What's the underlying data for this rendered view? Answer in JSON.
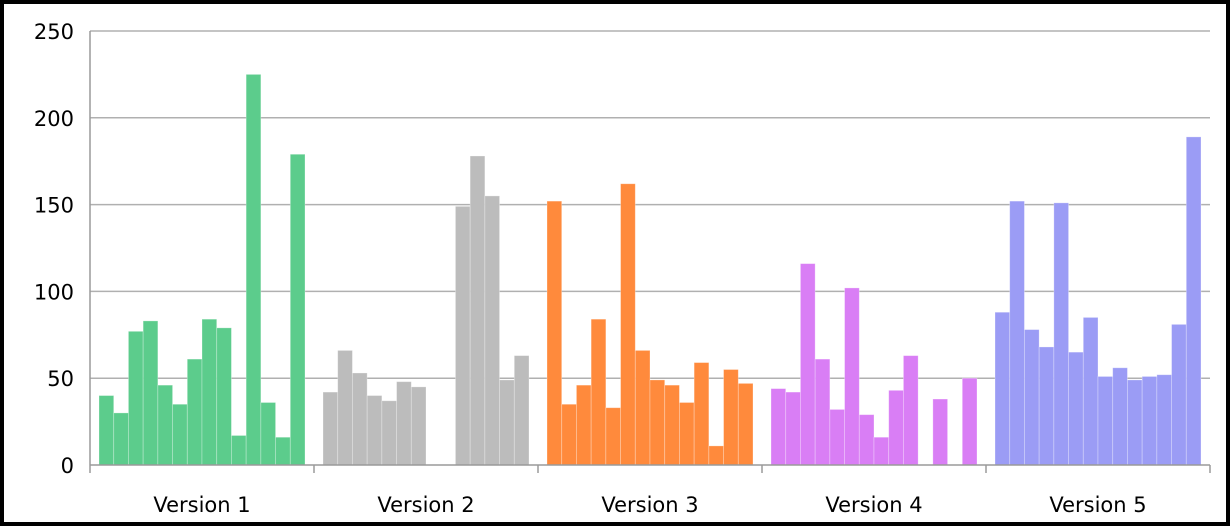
{
  "chart_data": {
    "type": "bar",
    "categories": [
      "Version 1",
      "Version 2",
      "Version 3",
      "Version 4",
      "Version 5"
    ],
    "ylim": [
      0,
      250
    ],
    "yticks": [
      0,
      50,
      100,
      150,
      200,
      250
    ],
    "grid": true,
    "legend": "none",
    "groups": [
      {
        "category": "Version 1",
        "color": "#5ccc8c",
        "values": [
          40,
          30,
          77,
          83,
          46,
          35,
          61,
          84,
          79,
          17,
          225,
          36,
          16,
          179
        ]
      },
      {
        "category": "Version 2",
        "color": "#bcbcbc",
        "values": [
          42,
          66,
          53,
          40,
          37,
          48,
          45,
          0,
          0,
          149,
          178,
          155,
          49,
          63
        ]
      },
      {
        "category": "Version 3",
        "color": "#ff8a3c",
        "values": [
          152,
          35,
          46,
          84,
          33,
          162,
          66,
          49,
          46,
          36,
          59,
          11,
          55,
          47
        ]
      },
      {
        "category": "Version 4",
        "color": "#d97ef5",
        "values": [
          44,
          42,
          116,
          61,
          32,
          102,
          29,
          16,
          43,
          63,
          0,
          38,
          0,
          50
        ]
      },
      {
        "category": "Version 5",
        "color": "#9b9cf5",
        "values": [
          88,
          152,
          78,
          68,
          151,
          65,
          85,
          51,
          56,
          49,
          51,
          52,
          81,
          189
        ]
      }
    ]
  }
}
